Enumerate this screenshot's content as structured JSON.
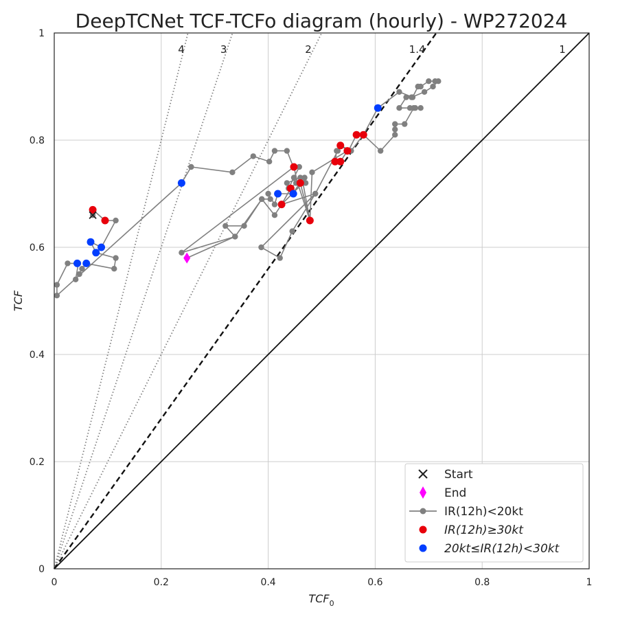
{
  "chart_data": {
    "type": "scatter",
    "title": "DeepTCNet TCF-TCFo diagram (hourly) - WP272024",
    "xlabel": "TCF",
    "xlabel_sub": "0",
    "ylabel": "TCF",
    "xlim": [
      0,
      1
    ],
    "ylim": [
      0,
      1
    ],
    "xticks": [
      "0",
      "0.2",
      "0.4",
      "0.6",
      "0.8",
      "1"
    ],
    "yticks": [
      "0",
      "0.2",
      "0.4",
      "0.6",
      "0.8",
      "1"
    ],
    "grid": true,
    "legend_position": "lower-right",
    "ratio_lines": [
      {
        "label": "4",
        "slope": 4,
        "style": "dotted"
      },
      {
        "label": "3",
        "slope": 3,
        "style": "dotted"
      },
      {
        "label": "2",
        "slope": 2,
        "style": "dotted"
      },
      {
        "label": "1.4",
        "slope": 1.4,
        "style": "dashed"
      },
      {
        "label": "1",
        "slope": 1,
        "style": "solid"
      }
    ],
    "colors": {
      "track": "#808080",
      "red": "#e8000b",
      "blue": "#023eff",
      "end": "#ff00ff",
      "start": "#222222"
    },
    "legend": [
      {
        "label": "Start",
        "marker": "x"
      },
      {
        "label": "End",
        "marker": "diamond"
      },
      {
        "label": "IR(12h)<20kt",
        "marker": "line-dot"
      },
      {
        "label": "IR(12h)≥30kt",
        "marker": "red-dot"
      },
      {
        "label": "20kt≤IR(12h)<30kt",
        "marker": "blue-dot"
      }
    ],
    "start": {
      "x": 0.072,
      "y": 0.66
    },
    "end": {
      "x": 0.248,
      "y": 0.58
    },
    "track": [
      [
        0.072,
        0.66
      ],
      [
        0.072,
        0.67
      ],
      [
        0.095,
        0.65
      ],
      [
        0.115,
        0.65
      ],
      [
        0.088,
        0.6
      ],
      [
        0.068,
        0.61
      ],
      [
        0.078,
        0.59
      ],
      [
        0.115,
        0.58
      ],
      [
        0.112,
        0.56
      ],
      [
        0.06,
        0.57
      ],
      [
        0.052,
        0.56
      ],
      [
        0.047,
        0.55
      ],
      [
        0.04,
        0.54
      ],
      [
        0.045,
        0.57
      ],
      [
        0.025,
        0.57
      ],
      [
        0.005,
        0.53
      ],
      [
        0.005,
        0.51
      ],
      [
        0.238,
        0.72
      ],
      [
        0.256,
        0.75
      ],
      [
        0.333,
        0.74
      ],
      [
        0.372,
        0.77
      ],
      [
        0.402,
        0.76
      ],
      [
        0.412,
        0.78
      ],
      [
        0.435,
        0.78
      ],
      [
        0.447,
        0.75
      ],
      [
        0.458,
        0.75
      ],
      [
        0.448,
        0.73
      ],
      [
        0.438,
        0.71
      ],
      [
        0.435,
        0.72
      ],
      [
        0.46,
        0.73
      ],
      [
        0.468,
        0.73
      ],
      [
        0.47,
        0.72
      ],
      [
        0.46,
        0.72
      ],
      [
        0.445,
        0.7
      ],
      [
        0.418,
        0.7
      ],
      [
        0.412,
        0.68
      ],
      [
        0.4,
        0.7
      ],
      [
        0.404,
        0.69
      ],
      [
        0.388,
        0.69
      ],
      [
        0.355,
        0.64
      ],
      [
        0.32,
        0.64
      ],
      [
        0.338,
        0.62
      ],
      [
        0.388,
        0.69
      ],
      [
        0.412,
        0.66
      ],
      [
        0.425,
        0.68
      ],
      [
        0.488,
        0.7
      ],
      [
        0.445,
        0.63
      ],
      [
        0.422,
        0.58
      ],
      [
        0.387,
        0.6
      ],
      [
        0.488,
        0.7
      ],
      [
        0.53,
        0.78
      ],
      [
        0.535,
        0.79
      ],
      [
        0.55,
        0.78
      ],
      [
        0.565,
        0.81
      ],
      [
        0.578,
        0.81
      ],
      [
        0.605,
        0.86
      ],
      [
        0.645,
        0.89
      ],
      [
        0.67,
        0.88
      ],
      [
        0.68,
        0.9
      ],
      [
        0.685,
        0.9
      ],
      [
        0.7,
        0.91
      ],
      [
        0.712,
        0.91
      ],
      [
        0.718,
        0.91
      ],
      [
        0.708,
        0.9
      ],
      [
        0.692,
        0.89
      ],
      [
        0.668,
        0.88
      ],
      [
        0.658,
        0.88
      ],
      [
        0.645,
        0.86
      ],
      [
        0.665,
        0.86
      ],
      [
        0.675,
        0.86
      ],
      [
        0.685,
        0.86
      ],
      [
        0.672,
        0.86
      ],
      [
        0.655,
        0.83
      ],
      [
        0.637,
        0.83
      ],
      [
        0.637,
        0.82
      ],
      [
        0.637,
        0.81
      ],
      [
        0.61,
        0.78
      ],
      [
        0.578,
        0.81
      ],
      [
        0.555,
        0.78
      ],
      [
        0.535,
        0.79
      ],
      [
        0.528,
        0.78
      ],
      [
        0.525,
        0.76
      ],
      [
        0.535,
        0.76
      ],
      [
        0.548,
        0.78
      ],
      [
        0.482,
        0.74
      ],
      [
        0.478,
        0.65
      ],
      [
        0.465,
        0.72
      ],
      [
        0.445,
        0.7
      ],
      [
        0.425,
        0.68
      ],
      [
        0.442,
        0.71
      ],
      [
        0.452,
        0.72
      ],
      [
        0.46,
        0.72
      ],
      [
        0.478,
        0.65
      ],
      [
        0.455,
        0.72
      ],
      [
        0.448,
        0.75
      ],
      [
        0.238,
        0.59
      ],
      [
        0.338,
        0.62
      ],
      [
        0.248,
        0.58
      ]
    ],
    "points_red": [
      [
        0.072,
        0.67
      ],
      [
        0.095,
        0.65
      ],
      [
        0.448,
        0.75
      ],
      [
        0.442,
        0.71
      ],
      [
        0.46,
        0.72
      ],
      [
        0.425,
        0.68
      ],
      [
        0.478,
        0.65
      ],
      [
        0.525,
        0.76
      ],
      [
        0.535,
        0.76
      ],
      [
        0.535,
        0.79
      ],
      [
        0.548,
        0.78
      ],
      [
        0.565,
        0.81
      ],
      [
        0.578,
        0.81
      ]
    ],
    "points_blue": [
      [
        0.068,
        0.61
      ],
      [
        0.088,
        0.6
      ],
      [
        0.078,
        0.59
      ],
      [
        0.043,
        0.57
      ],
      [
        0.06,
        0.57
      ],
      [
        0.238,
        0.72
      ],
      [
        0.418,
        0.7
      ],
      [
        0.447,
        0.7
      ],
      [
        0.605,
        0.86
      ]
    ]
  }
}
